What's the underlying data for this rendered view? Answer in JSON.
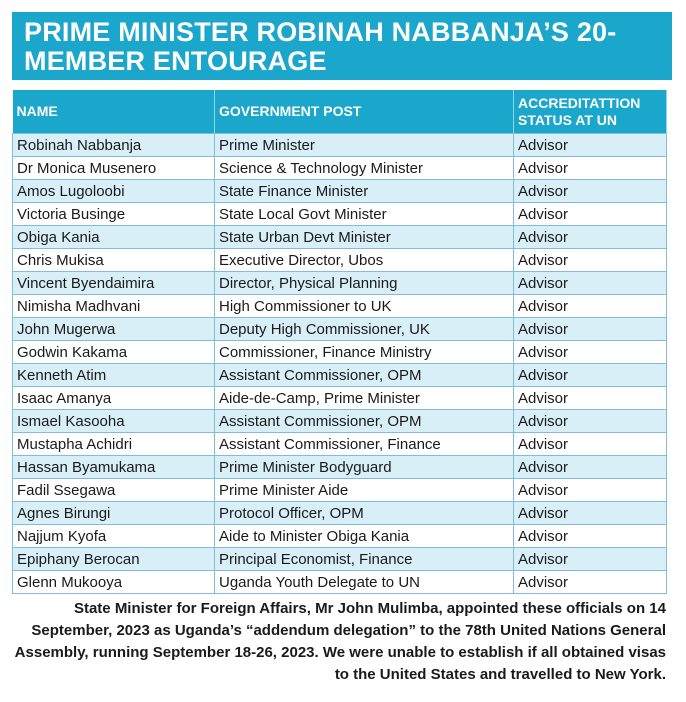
{
  "header": {
    "title": "PRIME MINISTER ROBINAH NABBANJA’S 20-MEMBER ENTOURAGE"
  },
  "table": {
    "headers": [
      "NAME",
      "GOVERNMENT POST",
      "ACCREDITATTION STATUS AT UN"
    ],
    "rows": [
      [
        "Robinah Nabbanja",
        "Prime Minister",
        "Advisor"
      ],
      [
        "Dr Monica Musenero",
        "Science & Technology Minister",
        "Advisor"
      ],
      [
        "Amos Lugoloobi",
        "State Finance Minister",
        "Advisor"
      ],
      [
        "Victoria Businge",
        "State Local Govt Minister",
        "Advisor"
      ],
      [
        "Obiga Kania",
        "State Urban Devt Minister",
        "Advisor"
      ],
      [
        "Chris Mukisa",
        "Executive Director, Ubos",
        "Advisor"
      ],
      [
        "Vincent Byendaimira",
        "Director, Physical Planning",
        "Advisor"
      ],
      [
        "Nimisha Madhvani",
        "High Commissioner to UK",
        "Advisor"
      ],
      [
        "John Mugerwa",
        "Deputy High Commissioner, UK",
        "Advisor"
      ],
      [
        "Godwin Kakama",
        "Commissioner, Finance Ministry",
        "Advisor"
      ],
      [
        "Kenneth Atim",
        "Assistant Commissioner, OPM",
        "Advisor"
      ],
      [
        "Isaac Amanya",
        "Aide-de-Camp, Prime Minister",
        "Advisor"
      ],
      [
        "Ismael Kasooha",
        "Assistant Commissioner, OPM",
        "Advisor"
      ],
      [
        "Mustapha Achidri",
        "Assistant Commissioner, Finance",
        "Advisor"
      ],
      [
        "Hassan Byamukama",
        "Prime Minister Bodyguard",
        "Advisor"
      ],
      [
        "Fadil Ssegawa",
        "Prime Minister Aide",
        "Advisor"
      ],
      [
        "Agnes Birungi",
        "Protocol Officer, OPM",
        "Advisor"
      ],
      [
        "Najjum Kyofa",
        "Aide to Minister Obiga Kania",
        "Advisor"
      ],
      [
        "Epiphany Berocan",
        "Principal Economist, Finance",
        "Advisor"
      ],
      [
        "Glenn Mukooya",
        "Uganda Youth Delegate to UN",
        "Advisor"
      ]
    ]
  },
  "footer": {
    "text": "State Minister for Foreign Affairs, Mr John Mulimba, appointed these officials on 14 September, 2023 as Uganda’s “addendum delegation” to the 78th United Nations General Assembly, running September 18-26, 2023. We were unable to establish if all obtained visas to the United States and travelled to New York."
  }
}
